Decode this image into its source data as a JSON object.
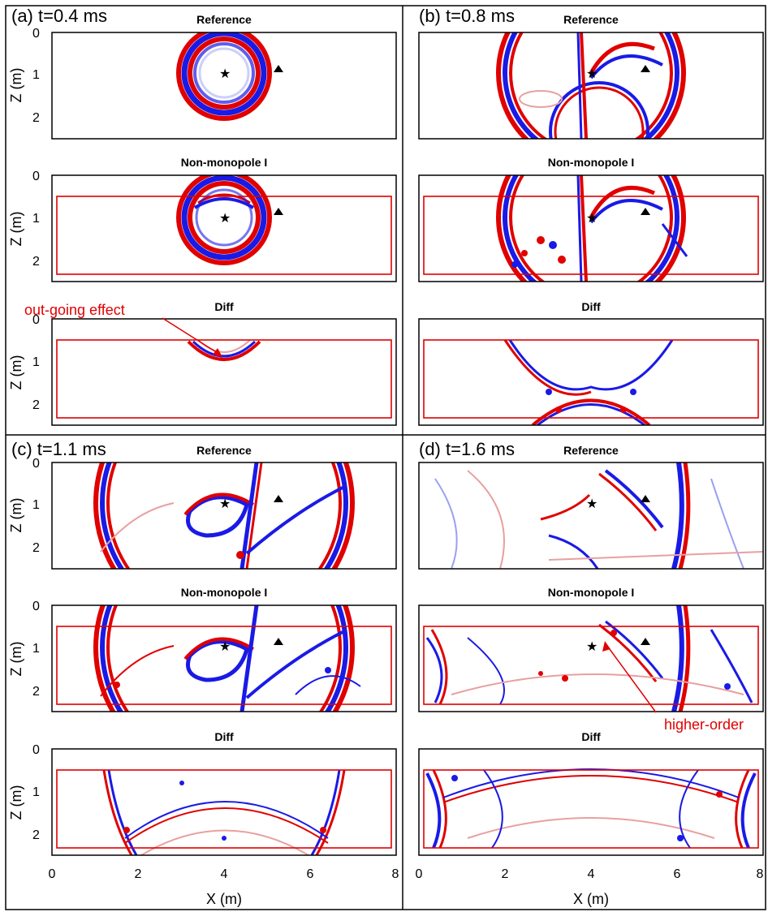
{
  "panels": [
    {
      "label": "(a) t=0.4 ms",
      "time_ms": 0.4
    },
    {
      "label": "(b) t=0.8 ms",
      "time_ms": 0.8
    },
    {
      "label": "(c) t=1.1 ms",
      "time_ms": 1.1
    },
    {
      "label": "(d) t=1.6 ms",
      "time_ms": 1.6
    }
  ],
  "subplot_titles": [
    "Reference",
    "Non-monopole I",
    "Diff"
  ],
  "axes": {
    "x_label": "X (m)",
    "z_label": "Z (m)",
    "x_ticks": [
      "0",
      "2",
      "4",
      "6",
      "8"
    ],
    "z_ticks": [
      "0",
      "1",
      "2"
    ],
    "x_range": [
      0,
      8
    ],
    "z_range": [
      -0.3,
      2.5
    ]
  },
  "annotations": {
    "out_going": "out-going effect",
    "higher_order": "higher-order"
  },
  "markers": {
    "source": {
      "symbol": "star",
      "x": 4.0,
      "z": 1.0
    },
    "receiver": {
      "symbol": "triangle",
      "x": 5.25,
      "z": 0.8
    }
  },
  "computational_boundary": {
    "x": [
      0.1,
      7.9
    ],
    "z": [
      0.5,
      2.3
    ]
  },
  "colors": {
    "positive": "#e00000",
    "negative": "#1a1ae6",
    "box": "#e00000",
    "annotation": "#e00000"
  }
}
